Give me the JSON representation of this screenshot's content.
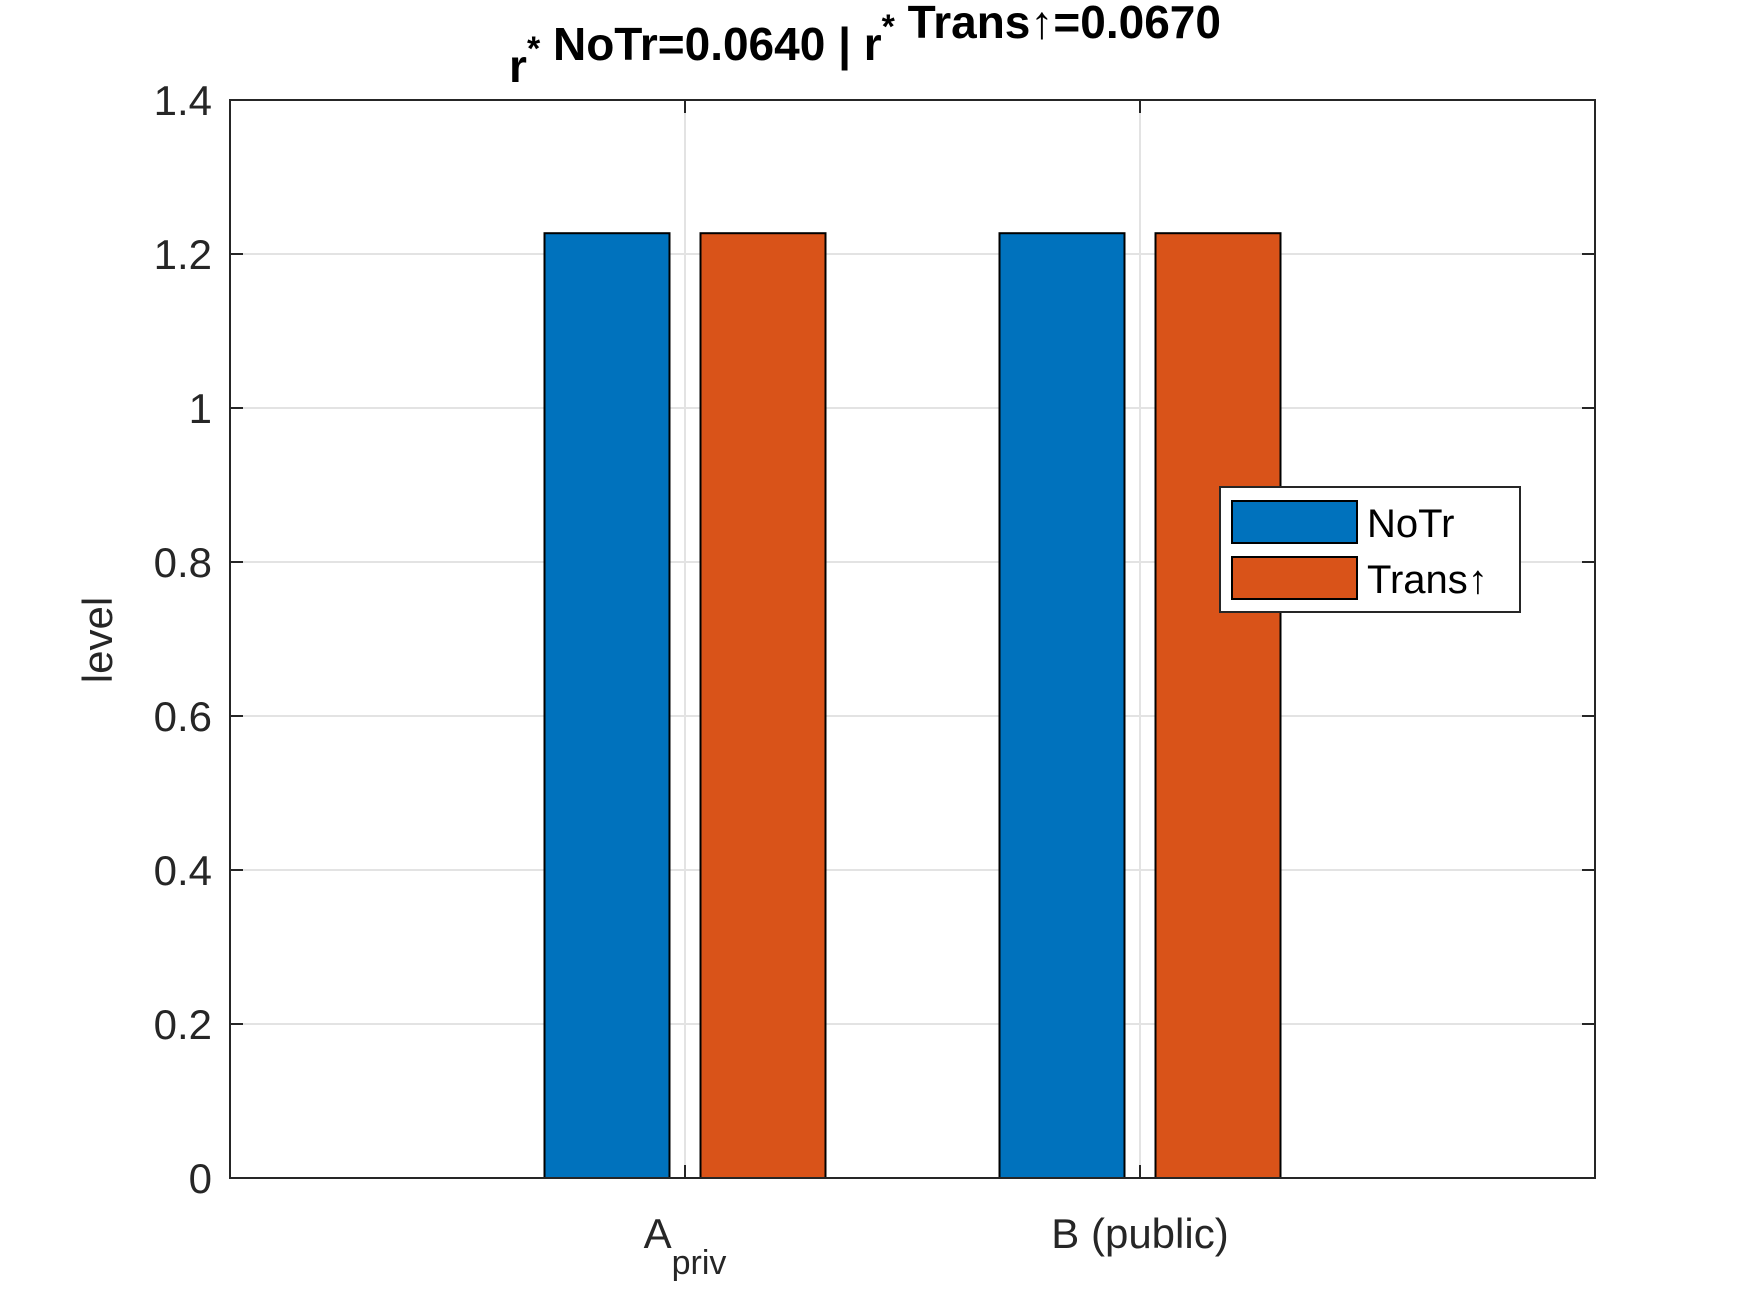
{
  "chart_data": {
    "type": "bar",
    "title": {
      "parts": [
        {
          "text": "r",
          "role": "base"
        },
        {
          "text": "*",
          "role": "sup"
        },
        {
          "text": " NoTr=0.0640 | r",
          "role": "base"
        },
        {
          "text": "*",
          "role": "sup"
        },
        {
          "text": " Trans↑=0.0670",
          "role": "base"
        }
      ]
    },
    "categories": [
      {
        "base": "A",
        "sub": "priv"
      },
      {
        "base": "B (public)",
        "sub": ""
      }
    ],
    "series": [
      {
        "name": "NoTr",
        "color": "#0072BD",
        "values": [
          1.227,
          1.227
        ]
      },
      {
        "name": "Trans↑",
        "color": "#D95319",
        "values": [
          1.227,
          1.227
        ]
      }
    ],
    "xlabel": "",
    "ylabel": "level",
    "ylim": [
      0,
      1.4
    ],
    "yticks": [
      0,
      0.2,
      0.4,
      0.6,
      0.8,
      1,
      1.2,
      1.4
    ],
    "ytick_labels": [
      "0",
      "0.2",
      "0.4",
      "0.6",
      "0.8",
      "1",
      "1.2",
      "1.4"
    ],
    "grid": true,
    "legend": {
      "placement": "right-middle"
    }
  }
}
